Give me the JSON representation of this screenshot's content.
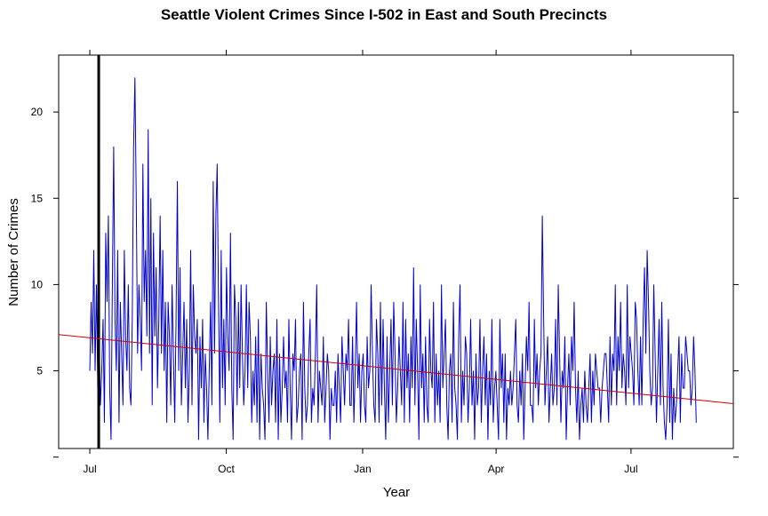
{
  "chart_data": {
    "type": "line",
    "title": "Seattle Violent Crimes Since I-502 in East and South Precincts",
    "xlabel": "Year",
    "ylabel": "Number of Crimes",
    "x_tick_labels": [
      "Jul",
      "Oct",
      "Jan",
      "Apr",
      "Jul"
    ],
    "x_ticks": [
      "2012-07-01",
      "2012-10-01",
      "2013-01-01",
      "2013-04-01",
      "2013-07-01"
    ],
    "xlim": [
      "2012-06-10",
      "2013-09-08"
    ],
    "y_tick_labels": [
      "5",
      "10",
      "15",
      "20"
    ],
    "y_ticks": [
      5,
      10,
      15,
      20
    ],
    "ylim": [
      0.5,
      23.3
    ],
    "x_start": "2012-07-01",
    "x_end": "2013-08-14",
    "vline": {
      "date": "2012-07-07",
      "color": "#000000"
    },
    "trend": {
      "start": "2012-06-10",
      "end": "2013-09-08",
      "y_start": 7.1,
      "y_end": 3.1,
      "color": "#cc0000"
    },
    "grid": false,
    "series": [
      {
        "color": "#0000cc",
        "values": [
          5,
          9,
          6,
          12,
          5,
          10,
          4,
          7,
          3,
          5,
          8,
          2,
          13,
          9,
          14,
          4,
          1,
          10,
          18,
          8,
          5,
          12,
          2,
          9,
          6,
          3,
          12,
          7,
          5,
          10,
          4,
          3,
          8,
          18,
          22,
          15,
          6,
          10,
          8,
          5,
          17,
          9,
          12,
          7,
          19,
          6,
          15,
          3,
          13,
          7,
          11,
          4,
          8,
          14,
          6,
          12,
          5,
          9,
          2,
          9,
          7,
          3,
          10,
          6,
          2,
          8,
          16,
          5,
          11,
          3,
          6,
          9,
          4,
          8,
          2,
          5,
          12,
          3,
          10,
          7,
          6,
          8,
          1,
          7,
          4,
          8,
          2,
          6,
          4,
          1,
          5,
          9,
          3,
          16,
          6,
          14,
          17,
          9,
          2,
          12,
          4,
          8,
          3,
          11,
          7,
          5,
          13,
          4,
          1,
          10,
          8,
          3,
          9,
          4,
          10,
          6,
          3,
          5,
          10,
          4,
          9,
          7,
          2,
          5,
          3,
          7,
          2,
          8,
          1,
          6,
          4,
          3,
          1,
          9,
          5,
          2,
          7,
          3,
          5,
          6,
          2,
          8,
          1,
          6,
          2,
          4,
          7,
          4,
          5,
          2,
          8,
          4,
          1,
          6,
          5,
          8,
          2,
          3,
          5,
          6,
          1,
          9,
          4,
          2,
          3,
          6,
          8,
          2,
          4,
          3,
          6,
          10,
          2,
          5,
          4,
          3,
          7,
          2,
          4,
          6,
          5,
          1,
          4,
          3,
          3,
          5,
          2,
          6,
          4,
          2,
          7,
          5,
          3,
          6,
          5,
          8,
          3,
          3,
          7,
          2,
          5,
          9,
          4,
          6,
          2,
          5,
          6,
          3,
          2,
          7,
          4,
          5,
          10,
          6,
          3,
          2,
          8,
          6,
          2,
          9,
          3,
          8,
          4,
          1,
          7,
          2,
          5,
          8,
          3,
          9,
          6,
          2,
          4,
          7,
          5,
          3,
          9,
          2,
          8,
          4,
          6,
          2,
          7,
          4,
          11,
          3,
          8,
          5,
          1,
          10,
          4,
          6,
          2,
          7,
          3,
          2,
          8,
          5,
          4,
          9,
          2,
          6,
          3,
          5,
          2,
          10,
          4,
          6,
          8,
          3,
          1,
          5,
          6,
          2,
          9,
          4,
          3,
          1,
          7,
          10,
          2,
          5,
          3,
          7,
          6,
          2,
          4,
          8,
          3,
          5,
          1,
          6,
          3,
          4,
          8,
          2,
          5,
          7,
          3,
          6,
          1,
          5,
          3,
          8,
          2,
          4,
          5,
          3,
          1,
          8,
          4,
          6,
          2,
          6,
          1,
          4,
          3,
          5,
          3,
          4,
          6,
          8,
          3,
          2,
          5,
          3,
          6,
          1,
          4,
          7,
          5,
          9,
          3,
          3,
          2,
          8,
          4,
          6,
          3,
          5,
          6,
          14,
          8,
          3,
          5,
          7,
          2,
          4,
          6,
          3,
          4,
          8,
          3,
          10,
          6,
          2,
          5,
          4,
          7,
          1,
          4,
          6,
          3,
          7,
          5,
          9,
          4,
          2,
          5,
          1,
          3,
          4,
          2,
          5,
          3,
          2,
          4,
          6,
          2,
          5,
          3,
          6,
          5,
          4,
          4,
          2,
          4,
          5,
          6,
          6,
          4,
          2,
          7,
          3,
          6,
          5,
          10,
          3,
          7,
          5,
          9,
          4,
          6,
          5,
          3,
          10,
          4,
          7,
          6,
          5,
          3,
          9,
          8,
          5,
          3,
          7,
          3,
          8,
          11,
          6,
          12,
          9,
          5,
          3,
          4,
          10,
          6,
          2,
          5,
          8,
          3,
          9,
          4,
          2,
          1,
          3,
          8,
          2,
          6,
          1,
          4,
          2,
          3,
          5,
          7,
          2,
          6,
          4,
          4,
          7,
          6,
          5,
          5,
          3,
          4,
          7,
          5,
          2
        ]
      }
    ]
  }
}
